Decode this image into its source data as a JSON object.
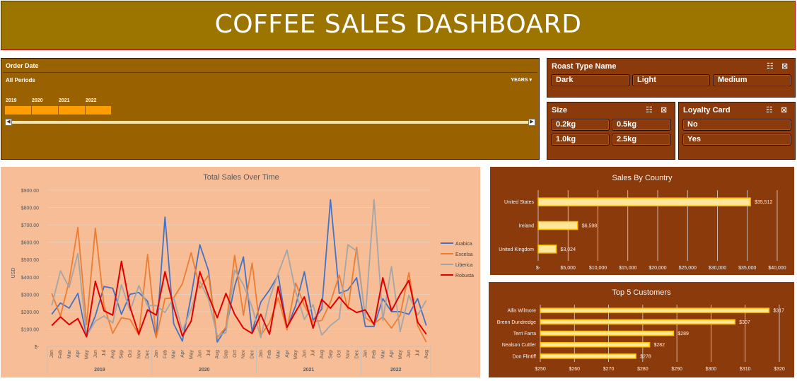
{
  "dashboard": {
    "title": "COFFEE SALES DASHBOARD"
  },
  "timeline": {
    "header": "Order Date",
    "periods_label": "All Periods",
    "years_label": "YEARS",
    "years": [
      "2019",
      "2020",
      "2021",
      "2022"
    ]
  },
  "roast_slicer": {
    "header": "Roast Type Name",
    "items": [
      "Dark",
      "Light",
      "Medium"
    ]
  },
  "size_slicer": {
    "header": "Size",
    "items": [
      "0.2kg",
      "0.5kg",
      "1.0kg",
      "2.5kg"
    ]
  },
  "loyalty_slicer": {
    "header": "Loyalty Card",
    "items": [
      "No",
      "Yes"
    ]
  },
  "colors": {
    "arabica": "#4472c4",
    "excelsa": "#ed7d31",
    "liberica": "#a5a5a5",
    "robusta": "#e00000",
    "bar_fill": "#ffe699",
    "bar_stroke": "#ffc000"
  },
  "chart_data": [
    {
      "type": "line",
      "title": "Total Sales Over Time",
      "ylabel": "USD",
      "ylim": [
        0,
        900
      ],
      "yticks": [
        "$-",
        "$100.00",
        "$200.00",
        "$300.00",
        "$400.00",
        "$500.00",
        "$600.00",
        "$700.00",
        "$800.00",
        "$900.00"
      ],
      "months": [
        "Jan",
        "Feb",
        "Mar",
        "Apr",
        "May",
        "Jun",
        "Jul",
        "Aug",
        "Sep",
        "Oct",
        "Nov",
        "Dec",
        "Jan",
        "Feb",
        "Mar",
        "Apr",
        "May",
        "Jun",
        "Jul",
        "Aug",
        "Sep",
        "Oct",
        "Nov",
        "Dec",
        "Jan",
        "Feb",
        "Mar",
        "Apr",
        "May",
        "Jun",
        "Jul",
        "Aug",
        "Sep",
        "Oct",
        "Nov",
        "Dec",
        "Jan",
        "Feb",
        "Mar",
        "Apr",
        "May",
        "Jun",
        "Jul",
        "Aug"
      ],
      "years": [
        "2019",
        "2020",
        "2021",
        "2022"
      ],
      "legend_position": "right",
      "series": [
        {
          "name": "Arabica",
          "values": [
            185,
            250,
            220,
            305,
            55,
            175,
            345,
            335,
            185,
            300,
            310,
            260,
            50,
            745,
            130,
            30,
            290,
            585,
            435,
            25,
            105,
            345,
            515,
            85,
            255,
            325,
            410,
            105,
            235,
            430,
            150,
            215,
            845,
            305,
            325,
            395,
            115,
            115,
            275,
            200,
            200,
            185,
            275,
            120
          ]
        },
        {
          "name": "Excelsa",
          "values": [
            305,
            175,
            375,
            685,
            125,
            680,
            235,
            75,
            165,
            155,
            65,
            530,
            50,
            275,
            280,
            360,
            540,
            335,
            410,
            50,
            110,
            525,
            180,
            480,
            65,
            135,
            280,
            95,
            365,
            235,
            140,
            150,
            255,
            410,
            215,
            570,
            165,
            130,
            170,
            105,
            180,
            425,
            120,
            25
          ]
        },
        {
          "name": "Liberica",
          "values": [
            235,
            435,
            340,
            535,
            60,
            145,
            175,
            135,
            355,
            205,
            350,
            235,
            235,
            195,
            280,
            90,
            215,
            375,
            270,
            60,
            80,
            440,
            355,
            225,
            50,
            275,
            420,
            555,
            315,
            155,
            240,
            65,
            120,
            160,
            585,
            550,
            170,
            845,
            150,
            460,
            85,
            295,
            180,
            265
          ]
        },
        {
          "name": "Robusta",
          "values": [
            120,
            170,
            125,
            160,
            55,
            375,
            205,
            180,
            490,
            225,
            70,
            210,
            180,
            430,
            225,
            60,
            145,
            430,
            290,
            165,
            305,
            185,
            105,
            75,
            185,
            70,
            345,
            110,
            200,
            285,
            105,
            270,
            220,
            285,
            225,
            195,
            210,
            125,
            395,
            205,
            300,
            380,
            140,
            70
          ]
        }
      ]
    },
    {
      "type": "bar",
      "title": "Sales By Country",
      "categories": [
        "United States",
        "Ireland",
        "United Kingdom"
      ],
      "values": [
        35512,
        6598,
        3024
      ],
      "value_labels": [
        "$35,512",
        "$6,598",
        "$3,024"
      ],
      "xlim": [
        0,
        40000
      ],
      "xticks": [
        "$-",
        "$5,000",
        "$10,000",
        "$15,000",
        "$20,000",
        "$25,000",
        "$30,000",
        "$35,000",
        "$40,000"
      ]
    },
    {
      "type": "bar",
      "title": "Top 5 Customers",
      "categories": [
        "Allis Wilmore",
        "Brenn Dundredge",
        "Terri Farra",
        "Nealson Cuttler",
        "Don Flintiff"
      ],
      "values": [
        317,
        307,
        289,
        282,
        278
      ],
      "value_labels": [
        "$317",
        "$307",
        "$289",
        "$282",
        "$278"
      ],
      "xlim": [
        250,
        320
      ],
      "xticks": [
        "$250",
        "$260",
        "$270",
        "$280",
        "$290",
        "$300",
        "$310",
        "$320"
      ]
    }
  ]
}
